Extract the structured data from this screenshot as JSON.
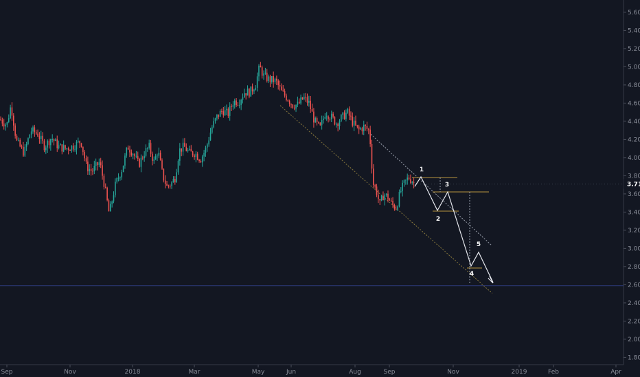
{
  "chart_data": {
    "type": "candlestick",
    "ylim": [
      1.72,
      5.72
    ],
    "y_ticks": [
      "5.60",
      "5.40",
      "5.20",
      "5.00",
      "4.80",
      "4.60",
      "4.40",
      "4.20",
      "4.00",
      "3.80",
      "3.60",
      "3.40",
      "3.20",
      "3.00",
      "2.80",
      "2.60",
      "2.40",
      "2.20",
      "2.00",
      "1.80"
    ],
    "x_labels": [
      "Sep",
      "Nov",
      "2018",
      "Mar",
      "May",
      "Jun",
      "Aug",
      "Sep",
      "Nov",
      "2019",
      "Feb",
      "Apr"
    ],
    "current_price": "3.71",
    "horizontal_line": 2.59,
    "grid": false,
    "price_anchors": [
      [
        0,
        4.42
      ],
      [
        10,
        4.36
      ],
      [
        16,
        4.58
      ],
      [
        24,
        4.18
      ],
      [
        35,
        4.05
      ],
      [
        45,
        4.3
      ],
      [
        55,
        4.26
      ],
      [
        65,
        4.12
      ],
      [
        75,
        4.22
      ],
      [
        85,
        4.12
      ],
      [
        95,
        4.1
      ],
      [
        105,
        4.12
      ],
      [
        118,
        4.18
      ],
      [
        126,
        3.9
      ],
      [
        134,
        3.85
      ],
      [
        145,
        3.95
      ],
      [
        152,
        3.7
      ],
      [
        159,
        3.38
      ],
      [
        168,
        3.7
      ],
      [
        178,
        3.88
      ],
      [
        186,
        4.12
      ],
      [
        194,
        4.05
      ],
      [
        202,
        3.92
      ],
      [
        210,
        4.05
      ],
      [
        217,
        4.12
      ],
      [
        224,
        3.95
      ],
      [
        230,
        4.08
      ],
      [
        237,
        3.8
      ],
      [
        243,
        3.68
      ],
      [
        250,
        3.72
      ],
      [
        255,
        3.78
      ],
      [
        261,
        4.08
      ],
      [
        268,
        4.12
      ],
      [
        276,
        4.05
      ],
      [
        284,
        4.05
      ],
      [
        292,
        3.98
      ],
      [
        300,
        4.1
      ],
      [
        308,
        4.32
      ],
      [
        316,
        4.45
      ],
      [
        324,
        4.52
      ],
      [
        332,
        4.48
      ],
      [
        340,
        4.62
      ],
      [
        348,
        4.62
      ],
      [
        356,
        4.72
      ],
      [
        364,
        4.72
      ],
      [
        372,
        4.8
      ],
      [
        378,
        5.0
      ],
      [
        384,
        4.9
      ],
      [
        392,
        4.86
      ],
      [
        402,
        4.84
      ],
      [
        410,
        4.72
      ],
      [
        418,
        4.66
      ],
      [
        426,
        4.58
      ],
      [
        434,
        4.58
      ],
      [
        442,
        4.66
      ],
      [
        450,
        4.6
      ],
      [
        458,
        4.4
      ],
      [
        466,
        4.32
      ],
      [
        474,
        4.5
      ],
      [
        482,
        4.45
      ],
      [
        490,
        4.38
      ],
      [
        498,
        4.44
      ],
      [
        506,
        4.5
      ],
      [
        514,
        4.38
      ],
      [
        522,
        4.3
      ],
      [
        530,
        4.34
      ],
      [
        537,
        4.3
      ],
      [
        540,
        4.12
      ],
      [
        543,
        3.72
      ],
      [
        548,
        3.64
      ],
      [
        553,
        3.48
      ],
      [
        559,
        3.6
      ],
      [
        565,
        3.56
      ],
      [
        571,
        3.48
      ],
      [
        577,
        3.45
      ],
      [
        583,
        3.62
      ],
      [
        589,
        3.72
      ],
      [
        595,
        3.78
      ],
      [
        601,
        3.74
      ],
      [
        604,
        3.7
      ]
    ],
    "wave_labels": [
      "1",
      "2",
      "3",
      "4",
      "5"
    ]
  }
}
